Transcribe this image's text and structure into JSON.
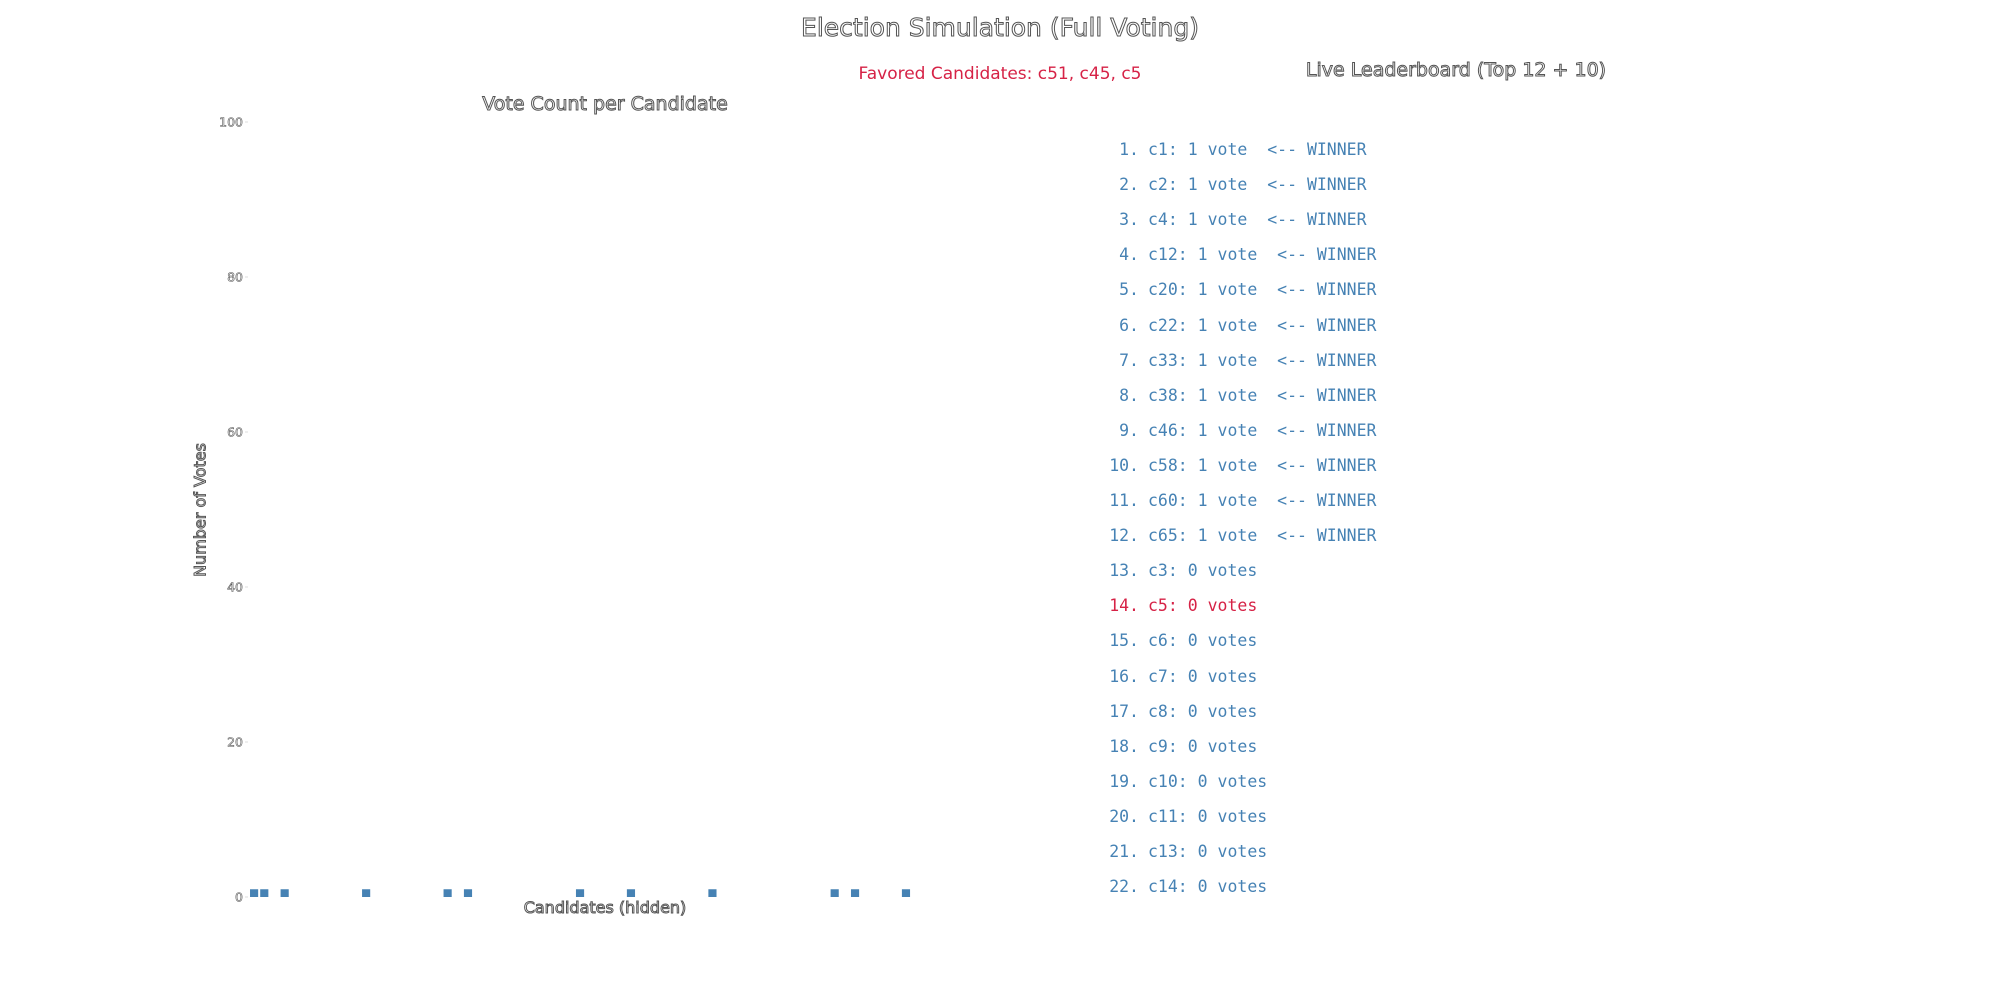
{
  "title": "Election Simulation (Full Voting)",
  "favored_text": "Favored Candidates: c51, c45, c5",
  "leaderboard": {
    "title": "Live Leaderboard (Top 12 + 10)",
    "items": [
      {
        "rank": "1.",
        "text": "c1: 1 vote  <-- WINNER",
        "color": "#4682b4"
      },
      {
        "rank": "2.",
        "text": "c2: 1 vote  <-- WINNER",
        "color": "#4682b4"
      },
      {
        "rank": "3.",
        "text": "c4: 1 vote  <-- WINNER",
        "color": "#4682b4"
      },
      {
        "rank": "4.",
        "text": "c12: 1 vote  <-- WINNER",
        "color": "#4682b4"
      },
      {
        "rank": "5.",
        "text": "c20: 1 vote  <-- WINNER",
        "color": "#4682b4"
      },
      {
        "rank": "6.",
        "text": "c22: 1 vote  <-- WINNER",
        "color": "#4682b4"
      },
      {
        "rank": "7.",
        "text": "c33: 1 vote  <-- WINNER",
        "color": "#4682b4"
      },
      {
        "rank": "8.",
        "text": "c38: 1 vote  <-- WINNER",
        "color": "#4682b4"
      },
      {
        "rank": "9.",
        "text": "c46: 1 vote  <-- WINNER",
        "color": "#4682b4"
      },
      {
        "rank": "10.",
        "text": "c58: 1 vote  <-- WINNER",
        "color": "#4682b4"
      },
      {
        "rank": "11.",
        "text": "c60: 1 vote  <-- WINNER",
        "color": "#4682b4"
      },
      {
        "rank": "12.",
        "text": "c65: 1 vote  <-- WINNER",
        "color": "#4682b4"
      },
      {
        "rank": "13.",
        "text": "c3: 0 votes",
        "color": "#4682b4"
      },
      {
        "rank": "14.",
        "text": "c5: 0 votes",
        "color": "#d62246"
      },
      {
        "rank": "15.",
        "text": "c6: 0 votes",
        "color": "#4682b4"
      },
      {
        "rank": "16.",
        "text": "c7: 0 votes",
        "color": "#4682b4"
      },
      {
        "rank": "17.",
        "text": "c8: 0 votes",
        "color": "#4682b4"
      },
      {
        "rank": "18.",
        "text": "c9: 0 votes",
        "color": "#4682b4"
      },
      {
        "rank": "19.",
        "text": "c10: 0 votes",
        "color": "#4682b4"
      },
      {
        "rank": "20.",
        "text": "c11: 0 votes",
        "color": "#4682b4"
      },
      {
        "rank": "21.",
        "text": "c13: 0 votes",
        "color": "#4682b4"
      },
      {
        "rank": "22.",
        "text": "c14: 0 votes",
        "color": "#4682b4"
      }
    ]
  },
  "chart_data": {
    "type": "bar",
    "title": "Vote Count per Candidate",
    "xlabel": "Candidates (hidden)",
    "ylabel": "Number of Votes",
    "ylim": [
      0,
      100
    ],
    "yticks": [
      0,
      20,
      40,
      60,
      80,
      100
    ],
    "xlim": [
      -0.5,
      69.5
    ],
    "categories_hidden": true,
    "bar_color": "#4682b4",
    "grid": false,
    "nonzero_bars": [
      {
        "candidate": "c1",
        "index": 0,
        "value": 1
      },
      {
        "candidate": "c2",
        "index": 1,
        "value": 1
      },
      {
        "candidate": "c4",
        "index": 3,
        "value": 1
      },
      {
        "candidate": "c12",
        "index": 11,
        "value": 1
      },
      {
        "candidate": "c20",
        "index": 19,
        "value": 1
      },
      {
        "candidate": "c22",
        "index": 21,
        "value": 1
      },
      {
        "candidate": "c33",
        "index": 32,
        "value": 1
      },
      {
        "candidate": "c38",
        "index": 37,
        "value": 1
      },
      {
        "candidate": "c46",
        "index": 45,
        "value": 1
      },
      {
        "candidate": "c58",
        "index": 57,
        "value": 1
      },
      {
        "candidate": "c60",
        "index": 59,
        "value": 1
      },
      {
        "candidate": "c65",
        "index": 64,
        "value": 1
      }
    ]
  }
}
